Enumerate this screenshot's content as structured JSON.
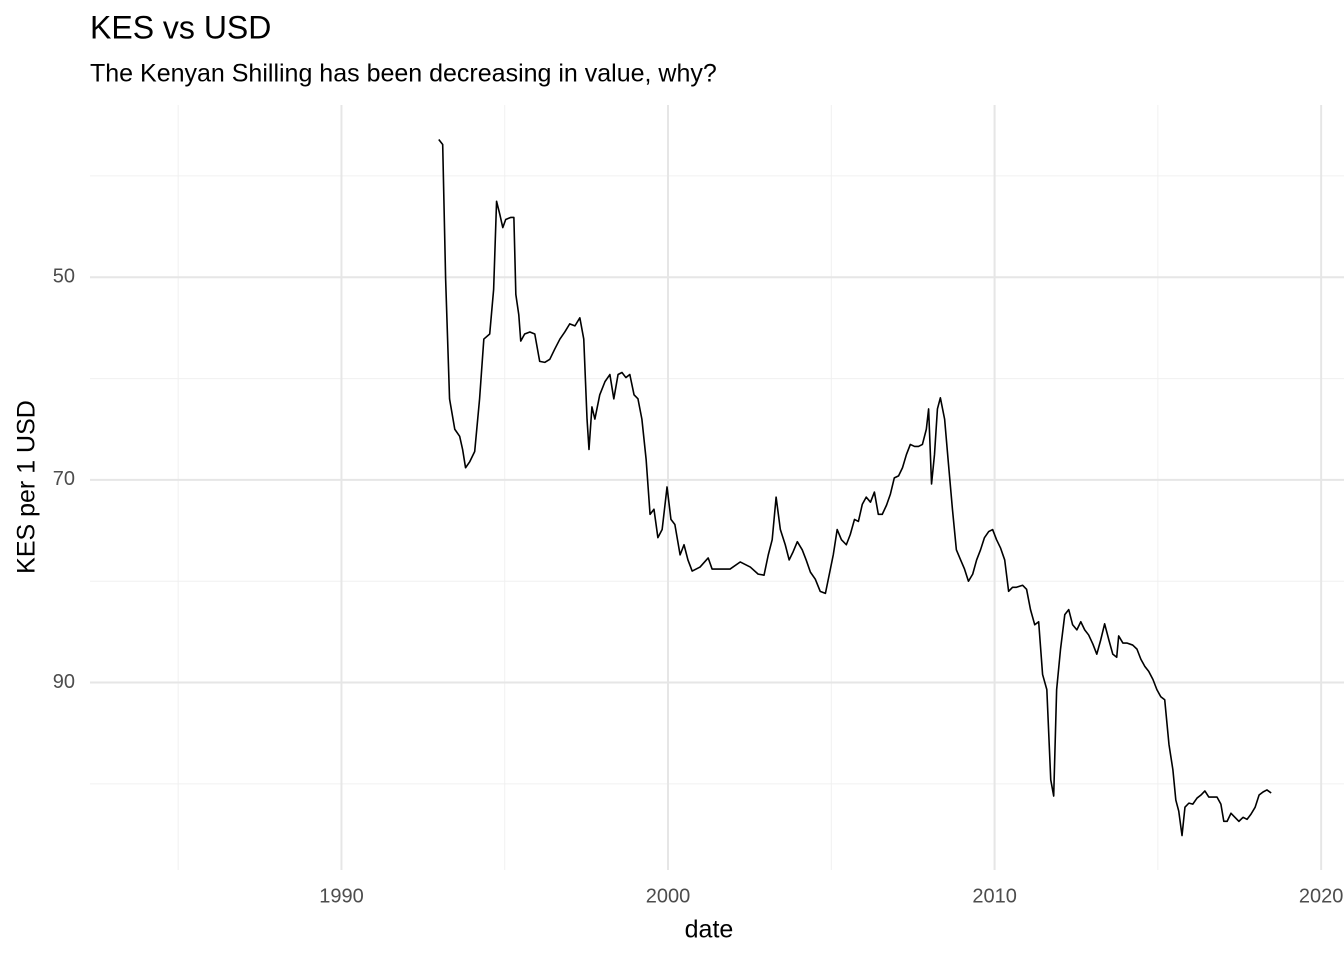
{
  "chart_data": {
    "type": "line",
    "title": "KES vs USD",
    "subtitle": "The Kenyan Shilling has been decreasing in value, why?",
    "x_label": "date",
    "y_label": "KES per 1 USD",
    "xlim": [
      1982.3,
      2020.7
    ],
    "ylim": [
      33,
      108.5
    ],
    "y_reversed": true,
    "xticks": [
      1990,
      2000,
      2010,
      2020
    ],
    "yticks": [
      50,
      70,
      90
    ],
    "x_minor_ticks": [
      1985,
      1995,
      2005,
      2015
    ],
    "y_minor_ticks": [
      40,
      60,
      80,
      100
    ],
    "grid": true,
    "x": [
      1992.98,
      1993.1,
      1993.19,
      1993.31,
      1993.47,
      1993.62,
      1993.71,
      1993.8,
      1993.93,
      1994.08,
      1994.23,
      1994.36,
      1994.54,
      1994.66,
      1994.75,
      1994.85,
      1994.94,
      1995.03,
      1995.18,
      1995.28,
      1995.34,
      1995.43,
      1995.49,
      1995.61,
      1995.77,
      1995.92,
      1996.07,
      1996.23,
      1996.38,
      1996.53,
      1996.69,
      1996.84,
      1996.99,
      1997.15,
      1997.3,
      1997.42,
      1997.52,
      1997.58,
      1997.67,
      1997.76,
      1997.91,
      1998.07,
      1998.22,
      1998.34,
      1998.47,
      1998.59,
      1998.71,
      1998.83,
      1998.96,
      1999.08,
      1999.2,
      1999.33,
      1999.45,
      1999.57,
      1999.69,
      1999.82,
      1999.97,
      2000.09,
      2000.21,
      2000.37,
      2000.49,
      2000.61,
      2000.74,
      2000.98,
      2001.23,
      2001.35,
      2001.6,
      2001.9,
      2002.21,
      2002.52,
      2002.76,
      2002.94,
      2003.07,
      2003.19,
      2003.31,
      2003.44,
      2003.59,
      2003.71,
      2003.83,
      2003.96,
      2004.11,
      2004.23,
      2004.36,
      2004.51,
      2004.66,
      2004.82,
      2004.94,
      2005.06,
      2005.18,
      2005.31,
      2005.46,
      2005.58,
      2005.71,
      2005.83,
      2005.95,
      2006.07,
      2006.2,
      2006.32,
      2006.44,
      2006.56,
      2006.69,
      2006.81,
      2006.93,
      2007.06,
      2007.18,
      2007.3,
      2007.42,
      2007.55,
      2007.67,
      2007.79,
      2007.91,
      2007.98,
      2008.07,
      2008.16,
      2008.25,
      2008.34,
      2008.47,
      2008.59,
      2008.71,
      2008.83,
      2008.96,
      2009.08,
      2009.2,
      2009.33,
      2009.45,
      2009.57,
      2009.69,
      2009.82,
      2009.94,
      2010.06,
      2010.18,
      2010.31,
      2010.43,
      2010.55,
      2010.67,
      2010.86,
      2010.98,
      2011.1,
      2011.23,
      2011.35,
      2011.47,
      2011.6,
      2011.72,
      2011.81,
      2011.9,
      2012.02,
      2012.15,
      2012.27,
      2012.39,
      2012.52,
      2012.64,
      2012.76,
      2012.88,
      2013.01,
      2013.13,
      2013.25,
      2013.37,
      2013.5,
      2013.62,
      2013.74,
      2013.8,
      2013.93,
      2014.05,
      2014.23,
      2014.36,
      2014.48,
      2014.6,
      2014.72,
      2014.85,
      2014.97,
      2015.09,
      2015.21,
      2015.34,
      2015.46,
      2015.55,
      2015.64,
      2015.74,
      2015.83,
      2015.95,
      2016.07,
      2016.2,
      2016.32,
      2016.44,
      2016.56,
      2016.69,
      2016.81,
      2016.93,
      2017.02,
      2017.12,
      2017.24,
      2017.36,
      2017.48,
      2017.61,
      2017.73,
      2017.85,
      2017.98,
      2018.1,
      2018.22,
      2018.34,
      2018.47
    ],
    "series": [
      {
        "color": "#000000",
        "values": [
          36.4,
          36.9,
          50.2,
          62.0,
          65.0,
          65.7,
          67.0,
          68.8,
          68.2,
          67.2,
          62.0,
          56.1,
          55.6,
          51.2,
          42.5,
          43.8,
          45.1,
          44.3,
          44.1,
          44.1,
          51.7,
          53.7,
          56.3,
          55.6,
          55.4,
          55.6,
          58.3,
          58.4,
          58.1,
          57.1,
          56.1,
          55.4,
          54.6,
          54.8,
          54.0,
          56.1,
          64.0,
          67.0,
          62.8,
          64.0,
          61.6,
          60.3,
          59.6,
          62.0,
          59.6,
          59.4,
          59.9,
          59.6,
          61.6,
          62.0,
          64.0,
          68.0,
          73.4,
          72.9,
          75.7,
          74.9,
          70.7,
          73.9,
          74.4,
          77.4,
          76.4,
          77.9,
          79.0,
          78.6,
          77.7,
          78.8,
          78.8,
          78.8,
          78.1,
          78.6,
          79.3,
          79.4,
          77.4,
          75.9,
          71.7,
          74.9,
          76.4,
          77.9,
          77.1,
          76.1,
          76.9,
          77.9,
          79.1,
          79.8,
          81.0,
          81.2,
          79.3,
          77.4,
          74.9,
          75.9,
          76.4,
          75.4,
          73.9,
          74.1,
          72.4,
          71.7,
          72.2,
          71.2,
          73.4,
          73.4,
          72.5,
          71.4,
          69.8,
          69.6,
          68.8,
          67.5,
          66.5,
          66.7,
          66.7,
          66.5,
          65.0,
          63.0,
          70.4,
          67.5,
          63.0,
          61.9,
          64.0,
          68.5,
          72.9,
          76.9,
          77.9,
          78.8,
          80.0,
          79.3,
          77.9,
          76.9,
          75.7,
          75.1,
          74.9,
          75.9,
          76.7,
          77.9,
          81.0,
          80.6,
          80.6,
          80.4,
          80.8,
          82.8,
          84.3,
          84.0,
          89.2,
          90.7,
          99.6,
          101.2,
          90.7,
          86.7,
          83.3,
          82.8,
          84.3,
          84.8,
          84.0,
          84.8,
          85.3,
          86.2,
          87.2,
          85.8,
          84.2,
          85.8,
          87.2,
          87.5,
          85.4,
          86.1,
          86.1,
          86.3,
          86.7,
          87.7,
          88.4,
          88.9,
          89.7,
          90.7,
          91.4,
          91.7,
          96.1,
          98.6,
          101.6,
          102.7,
          105.1,
          102.3,
          101.9,
          102.0,
          101.4,
          101.1,
          100.7,
          101.3,
          101.3,
          101.3,
          102.0,
          103.7,
          103.7,
          102.9,
          103.3,
          103.7,
          103.3,
          103.5,
          103.0,
          102.3,
          101.1,
          100.8,
          100.6,
          100.9
        ]
      }
    ]
  }
}
